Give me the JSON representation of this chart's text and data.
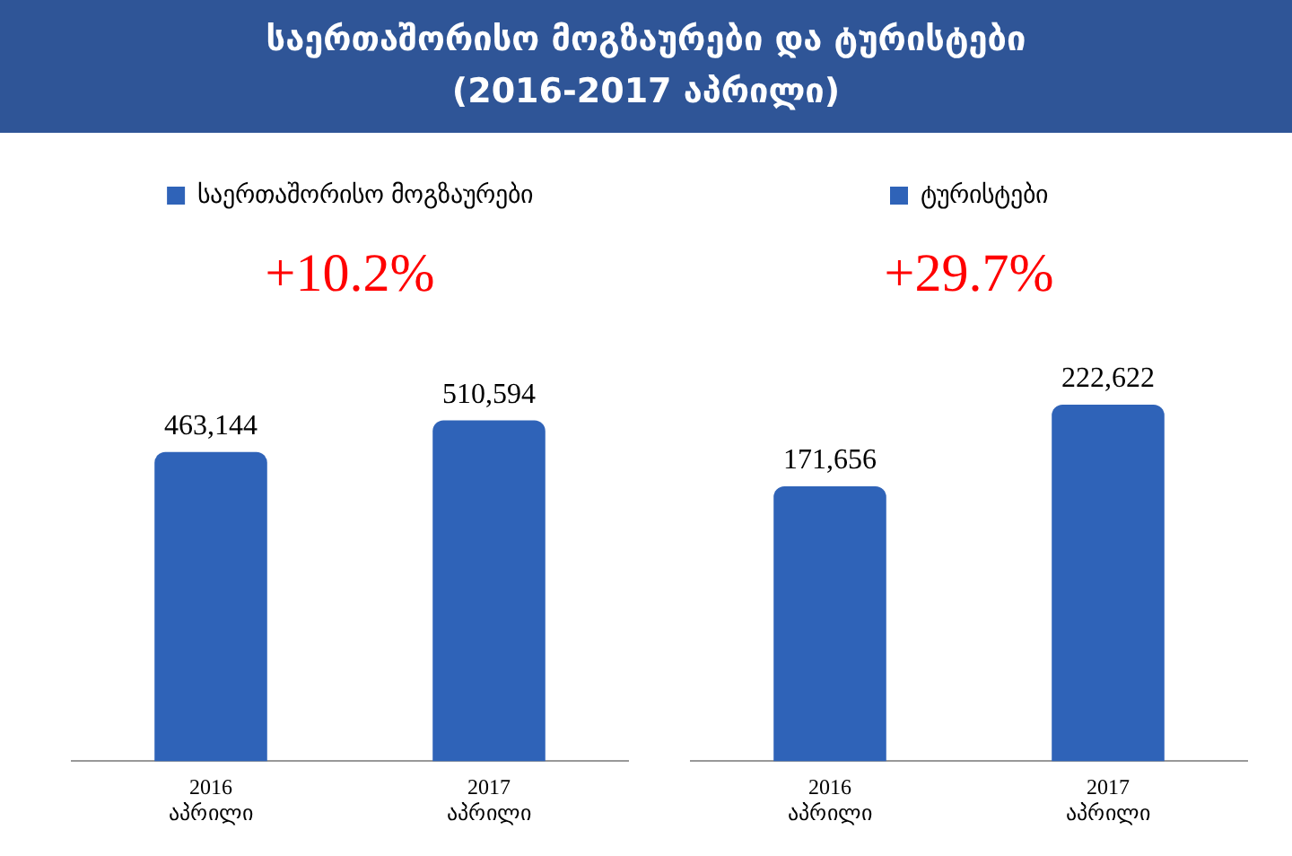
{
  "chart_data": [
    {
      "type": "bar",
      "title": "საერთაშორისო მოგზაურები და ტურისტები",
      "subtitle": "(2016-2017 აპრილი)",
      "categories": [
        "2016 აპრილი",
        "2017 აპრილი"
      ],
      "series": [
        {
          "name": "საერთაშორისო მოგზაურები",
          "color": "#2f63b8",
          "values": [
            463144,
            510594
          ],
          "value_labels": [
            "463,144",
            "510,594"
          ]
        }
      ],
      "annotations": [
        "+10.2%"
      ],
      "legend": "top",
      "grid": false
    },
    {
      "type": "bar",
      "categories": [
        "2016 აპრილი",
        "2017 აპრილი"
      ],
      "series": [
        {
          "name": "ტურისტები",
          "color": "#2f63b8",
          "values": [
            171656,
            222622
          ],
          "value_labels": [
            "171,656",
            "222,622"
          ]
        }
      ],
      "annotations": [
        "+29.7%"
      ],
      "legend": "top",
      "grid": false
    }
  ]
}
